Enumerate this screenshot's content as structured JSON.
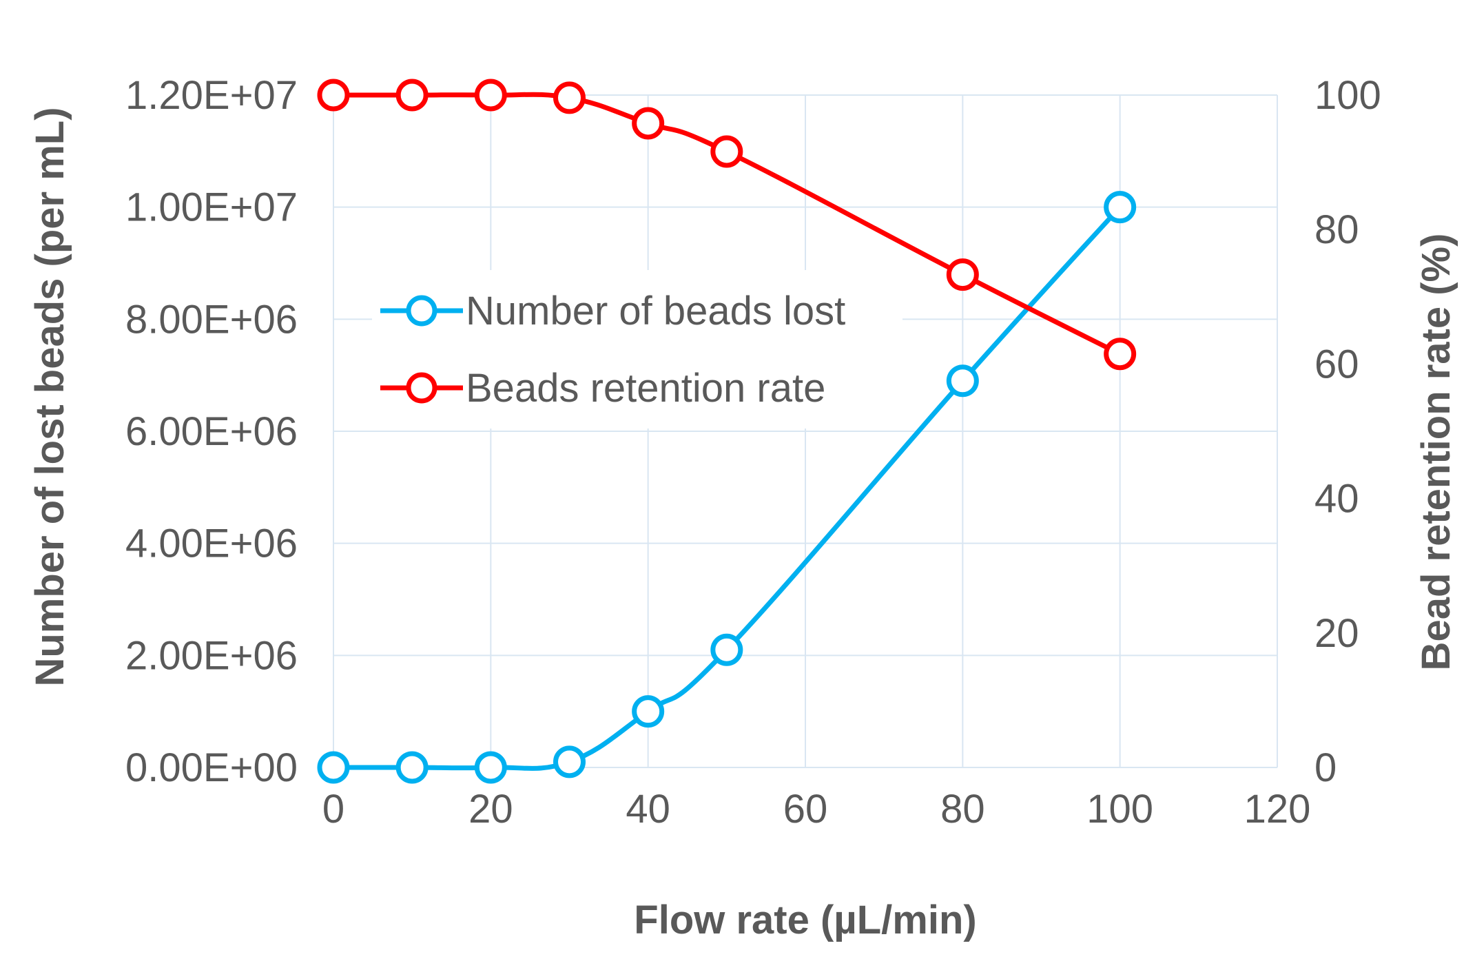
{
  "chart_data": {
    "type": "line",
    "title": "",
    "xlabel": "Flow rate (µL/min)",
    "ylabel": "Number of lost beads (per mL)",
    "y2label": "Bead retention rate (%)",
    "xlim": [
      0,
      120
    ],
    "ylim": [
      0,
      12000000
    ],
    "y2lim": [
      0,
      100
    ],
    "x_ticks": [
      "0",
      "20",
      "40",
      "60",
      "80",
      "100",
      "120"
    ],
    "y_ticks": [
      "0.00E+00",
      "2.00E+06",
      "4.00E+06",
      "6.00E+06",
      "8.00E+06",
      "1.00E+07",
      "1.20E+07"
    ],
    "y2_ticks": [
      "0",
      "20",
      "40",
      "60",
      "80",
      "100"
    ],
    "grid": true,
    "legend_position": "upper-left",
    "series": [
      {
        "name": "Number of beads lost",
        "axis": "left",
        "color": "#00B0F0",
        "x": [
          0,
          10,
          20,
          30,
          40,
          50,
          80,
          100
        ],
        "values": [
          0,
          0,
          0,
          100000,
          1000000,
          2100000,
          6900000,
          10000000
        ]
      },
      {
        "name": "Beads retention rate",
        "axis": "right",
        "color": "#FF0000",
        "x": [
          0,
          10,
          20,
          30,
          40,
          50,
          80,
          100
        ],
        "values": [
          100,
          100,
          100,
          99.6,
          95.8,
          91.6,
          73.3,
          61.5
        ]
      }
    ]
  }
}
